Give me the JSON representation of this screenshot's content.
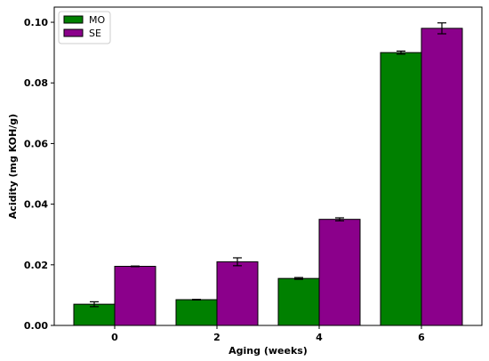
{
  "chart_data": {
    "type": "bar",
    "title": "",
    "xlabel": "Aging (weeks)",
    "ylabel": "Acidity (mg KOH/g)",
    "categories": [
      "0",
      "2",
      "4",
      "6"
    ],
    "ylim": [
      0,
      0.105
    ],
    "yticks": [
      "0.00",
      "0.02",
      "0.04",
      "0.06",
      "0.08",
      "0.10"
    ],
    "legend_position": "top-left",
    "grid": false,
    "series": [
      {
        "name": "MO",
        "color": "#008000",
        "values": [
          0.007,
          0.0085,
          0.0155,
          0.09
        ],
        "errors": [
          0.0008,
          0.0001,
          0.0003,
          0.0005
        ]
      },
      {
        "name": "SE",
        "color": "#8b008b",
        "values": [
          0.0195,
          0.021,
          0.035,
          0.098
        ],
        "errors": [
          0.0001,
          0.0013,
          0.0005,
          0.0018
        ]
      }
    ]
  }
}
